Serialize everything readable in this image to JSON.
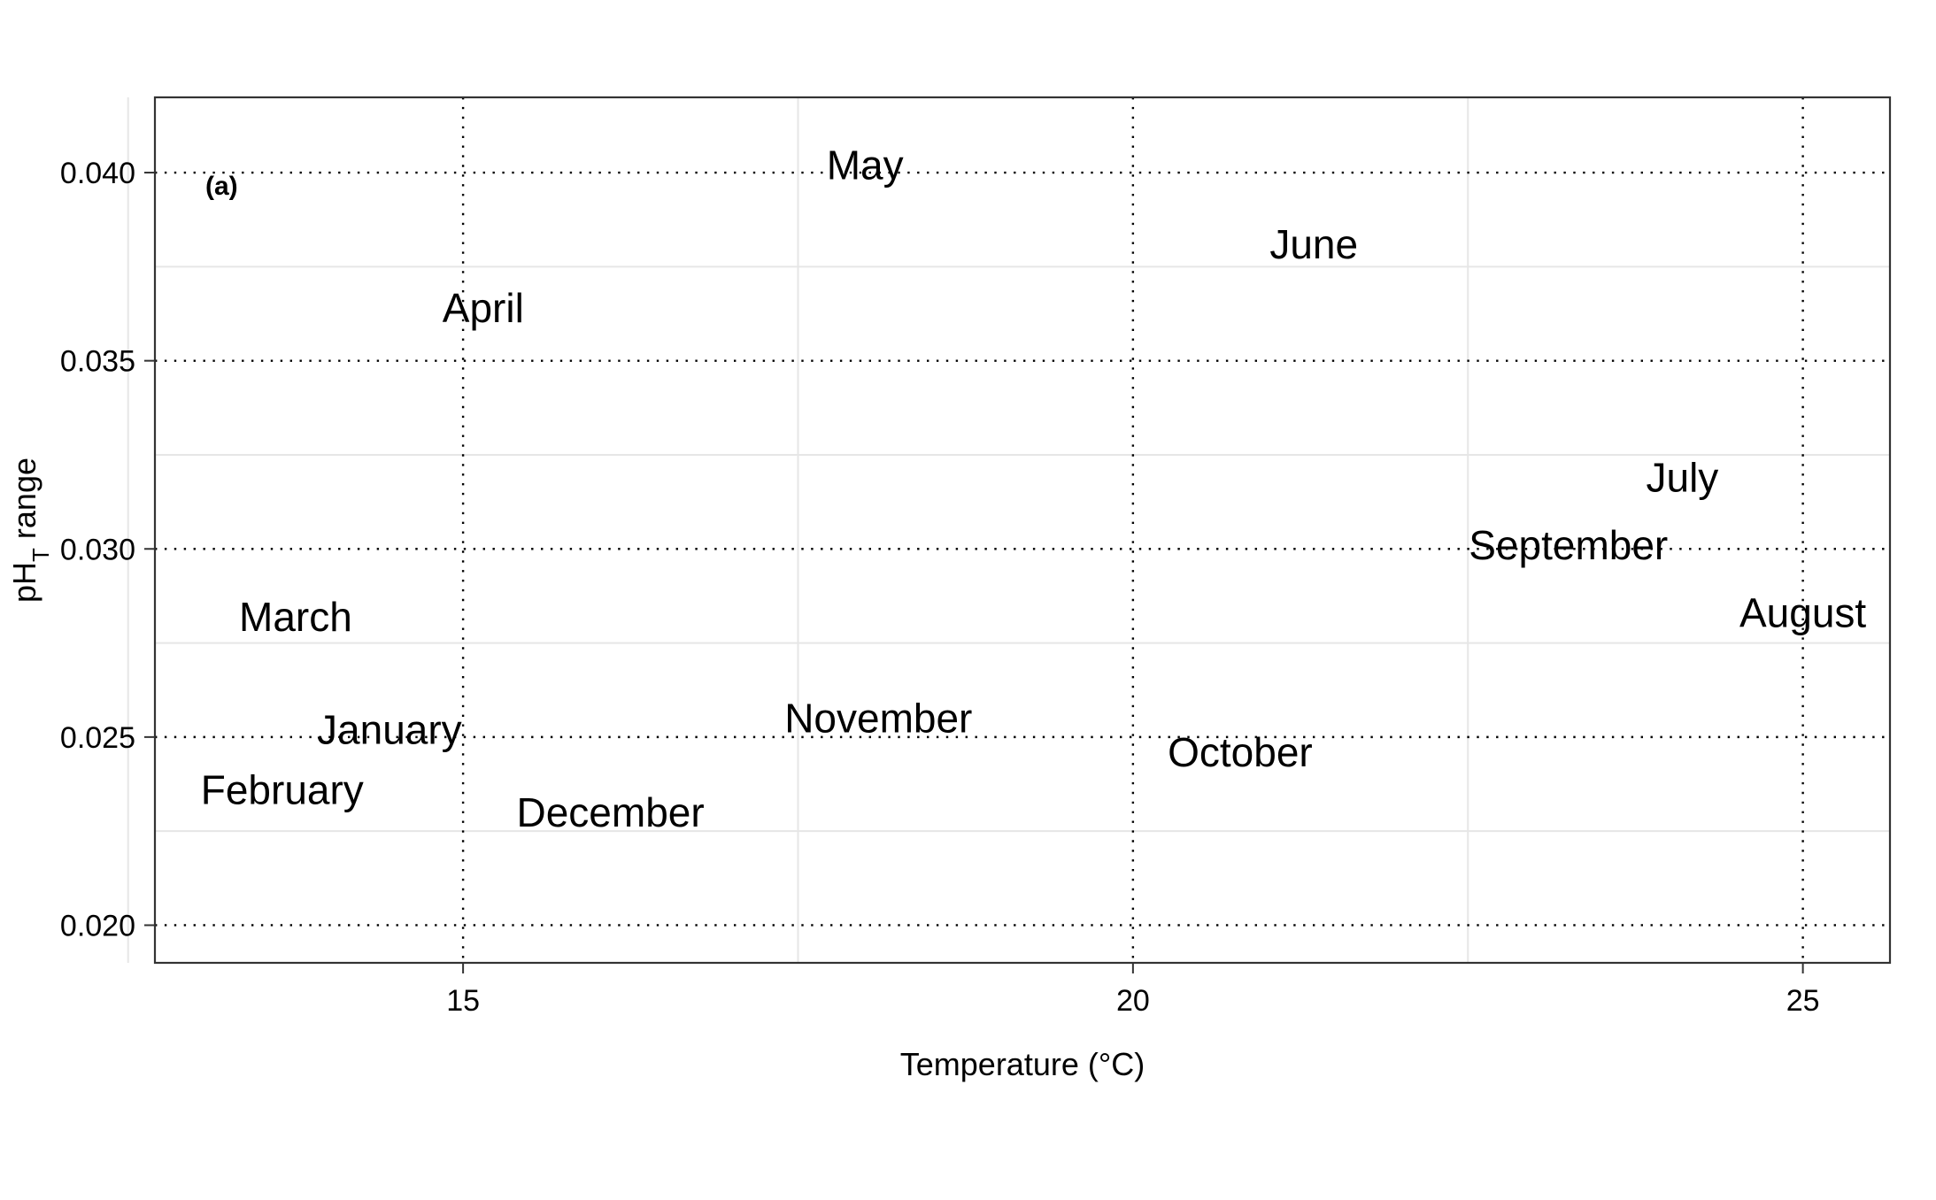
{
  "chart_data": {
    "type": "scatter",
    "panel_label": "(a)",
    "xlabel": "Temperature (°C)",
    "ylabel": {
      "main": "pH",
      "subscript": "T",
      "suffix": " range"
    },
    "xlim": [
      12.7,
      25.65
    ],
    "ylim": [
      0.019,
      0.042
    ],
    "x_ticks": [
      {
        "value": 15,
        "label": "15"
      },
      {
        "value": 20,
        "label": "20"
      },
      {
        "value": 25,
        "label": "25"
      }
    ],
    "y_ticks": [
      {
        "value": 0.02,
        "label": "0.020"
      },
      {
        "value": 0.025,
        "label": "0.025"
      },
      {
        "value": 0.03,
        "label": "0.030"
      },
      {
        "value": 0.035,
        "label": "0.035"
      },
      {
        "value": 0.04,
        "label": "0.040"
      }
    ],
    "x_minor_grid": [
      12.5,
      17.5,
      22.5
    ],
    "y_minor_grid": [
      0.0225,
      0.0275,
      0.0325,
      0.0375
    ],
    "grid": true,
    "points": [
      {
        "label": "January",
        "x": 14.45,
        "y": 0.0252
      },
      {
        "label": "February",
        "x": 13.65,
        "y": 0.0236
      },
      {
        "label": "March",
        "x": 13.75,
        "y": 0.0282
      },
      {
        "label": "April",
        "x": 15.15,
        "y": 0.0364
      },
      {
        "label": "May",
        "x": 18.0,
        "y": 0.0402
      },
      {
        "label": "June",
        "x": 21.35,
        "y": 0.0381
      },
      {
        "label": "July",
        "x": 24.1,
        "y": 0.0319
      },
      {
        "label": "August",
        "x": 25.0,
        "y": 0.0283
      },
      {
        "label": "September",
        "x": 23.25,
        "y": 0.0301
      },
      {
        "label": "October",
        "x": 20.8,
        "y": 0.0246
      },
      {
        "label": "November",
        "x": 18.1,
        "y": 0.0255
      },
      {
        "label": "December",
        "x": 16.1,
        "y": 0.023
      }
    ]
  }
}
